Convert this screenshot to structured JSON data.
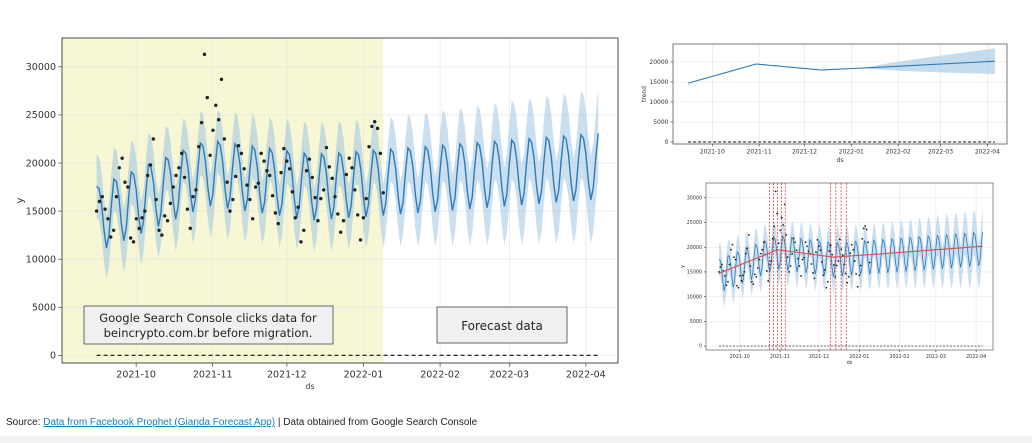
{
  "source": {
    "prefix": "Source:",
    "link_text": "Data from Facebook Prophet (Gianda Forecast App)",
    "suffix": "| Data obtained from Google Search Console"
  },
  "colors": {
    "history_band": "#f7f7d6",
    "forecast_line": "#2f7bb8",
    "interval": "#9ec4e2",
    "points": "#222222",
    "changepoint": "#e3261b",
    "trend_red": "#e34a4a"
  },
  "chart_data": [
    {
      "id": "main",
      "type": "line",
      "xlabel": "ds",
      "ylabel": "y",
      "x_start": "2021-09-15",
      "x_end": "2022-04-06",
      "ylim": [
        -800,
        33000
      ],
      "yticks": [
        0,
        5000,
        10000,
        15000,
        20000,
        25000,
        30000
      ],
      "xticks": [
        "2021-10",
        "2021-11",
        "2021-12",
        "2022-01",
        "2022-02",
        "2022-03",
        "2022-04"
      ],
      "history_end": "2022-01-09",
      "annotations": [
        "Google Search Console clicks data for beincrypto.com.br before migration.",
        "Forecast data"
      ],
      "series": [
        {
          "name": "actual",
          "kind": "points",
          "values": [
            15000,
            16000,
            16500,
            15200,
            14200,
            12300,
            13000,
            16500,
            19500,
            20500,
            18000,
            17500,
            12200,
            11800,
            14200,
            13200,
            14300,
            15000,
            18700,
            19800,
            22500,
            16200,
            13000,
            12500,
            14500,
            14000,
            15800,
            17500,
            18700,
            19500,
            21000,
            18500,
            15200,
            13200,
            16500,
            17200,
            21700,
            24200,
            31300,
            26800,
            20800,
            23400,
            26000,
            24500,
            28700,
            22500,
            18000,
            15000,
            16200,
            18600,
            21800,
            21000,
            19400,
            17700,
            16200,
            14200,
            17500,
            17900,
            21000,
            20200,
            19200,
            18700,
            16600,
            14800,
            13700,
            19000,
            21500,
            20200,
            19400,
            17000,
            14300,
            15400,
            11800,
            13000,
            19200,
            20400,
            18500,
            16400,
            14000,
            16300,
            17200,
            21600,
            19600,
            18400,
            16500,
            14700,
            12800,
            14000,
            18800,
            20500,
            19500,
            17200,
            14600,
            12000,
            14300,
            16300,
            21700,
            23800,
            24300,
            23600,
            21000,
            16900
          ]
        }
      ]
    },
    {
      "id": "trend",
      "type": "line",
      "xlabel": "ds",
      "ylabel": "trend",
      "ylim": [
        -500,
        24500
      ],
      "yticks": [
        0,
        5000,
        10000,
        15000,
        20000
      ],
      "xticks": [
        "2021-10",
        "2021-11",
        "2021-12",
        "2022-01",
        "2022-02",
        "2022-03",
        "2022-04"
      ],
      "series": [
        {
          "name": "trend",
          "x": [
            "2021-09-15",
            "2021-10-30",
            "2021-12-12",
            "2022-01-20",
            "2022-04-06"
          ],
          "values": [
            14700,
            19500,
            18000,
            18700,
            20200
          ]
        }
      ]
    },
    {
      "id": "changepoints",
      "type": "line",
      "xlabel": "ds",
      "ylabel": "y",
      "ylim": [
        -800,
        33000
      ],
      "yticks": [
        0,
        5000,
        10000,
        15000,
        20000,
        25000,
        30000
      ],
      "xticks": [
        "2021-10",
        "2021-11",
        "2021-12",
        "2022-01",
        "2022-02",
        "2022-03",
        "2022-04"
      ],
      "changepoints": [
        "2021-10-24",
        "2021-10-27",
        "2021-10-30",
        "2021-11-02",
        "2021-11-05",
        "2021-12-10",
        "2021-12-14",
        "2021-12-18",
        "2021-12-22"
      ],
      "series": [
        {
          "name": "trend",
          "x": [
            "2021-09-15",
            "2021-10-30",
            "2021-12-12",
            "2022-01-20",
            "2022-04-06"
          ],
          "values": [
            14700,
            19500,
            18000,
            18700,
            20200
          ]
        }
      ]
    }
  ]
}
